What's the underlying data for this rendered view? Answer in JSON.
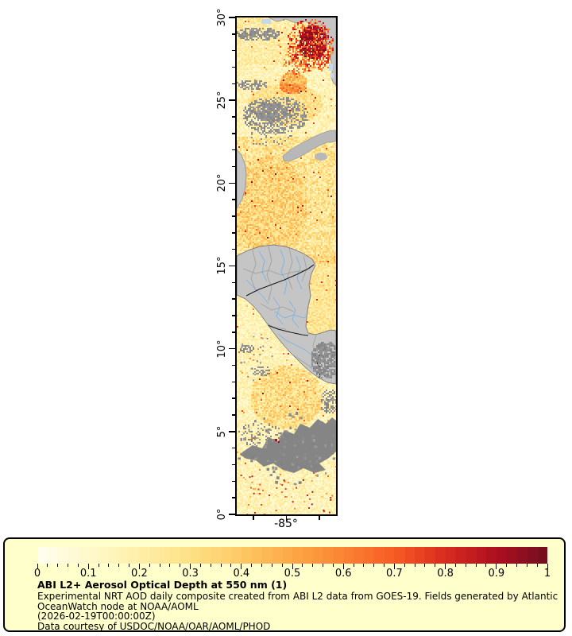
{
  "figure": {
    "kind": "satellite aerosol optical depth map with colorbar legend"
  },
  "map": {
    "lat_ticks": [
      "30°",
      "25°",
      "20°",
      "15°",
      "10°",
      "5°",
      "0°"
    ],
    "lon_tick_label": "-85°",
    "colors": {
      "land_gray": "#c5c5c5",
      "cuba_gray": "#b8b8b8",
      "cloud_gray": "#8a8a8a",
      "water_norettrieval": "#c8d8ea",
      "river_blue": "#7fb2e0",
      "admin_border_gray": "#9a9a9a",
      "country_border_black": "#1a1a1a",
      "frame_black": "#000000"
    }
  },
  "legend": {
    "background": "#ffffcc",
    "border_color": "#000000",
    "ticks": [
      "0",
      "0.1",
      "0.2",
      "0.3",
      "0.4",
      "0.5",
      "0.6",
      "0.7",
      "0.8",
      "0.9",
      "1"
    ],
    "title": "ABI L2+ Aerosol Optical Depth at 550 nm (1)",
    "line1": "Experimental NRT AOD daily composite created from ABI L2 data from GOES-19. Fields generated by Atlantic",
    "line2": "OceanWatch node at NOAA/AOML",
    "line3": "(2026-02-19T00:00:00Z)",
    "line4": "Data courtesy of USDOC/NOAA/OAR/AOML/PHOD",
    "value_range": [
      0,
      1
    ],
    "palette_rgb_stops": [
      [
        255,
        255,
        240
      ],
      [
        255,
        249,
        204
      ],
      [
        255,
        239,
        168
      ],
      [
        254,
        225,
        135
      ],
      [
        254,
        201,
        101
      ],
      [
        253,
        168,
        71
      ],
      [
        251,
        132,
        51
      ],
      [
        247,
        91,
        37
      ],
      [
        217,
        43,
        32
      ],
      [
        173,
        16,
        32
      ],
      [
        114,
        14,
        32
      ]
    ]
  }
}
